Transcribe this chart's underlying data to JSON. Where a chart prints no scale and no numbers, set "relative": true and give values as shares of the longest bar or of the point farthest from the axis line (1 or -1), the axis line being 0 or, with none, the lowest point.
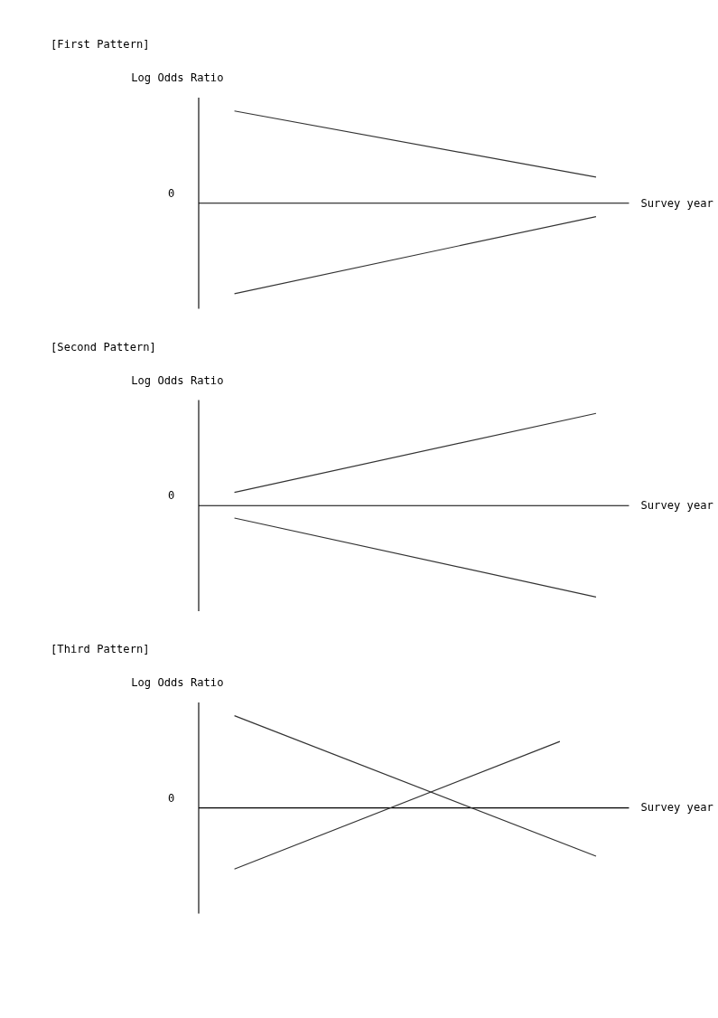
{
  "chart_data": [
    {
      "type": "line",
      "title": "[First Pattern]",
      "ylabel": "Log Odds Ratio",
      "xlabel": "Survey year",
      "relative": true,
      "grid": false,
      "marker": "none",
      "line_style": "solid",
      "tick_labels": false,
      "categories": [
        null,
        null,
        null,
        null,
        null,
        null,
        null,
        null,
        null,
        null,
        null
      ],
      "annotations": [
        "0"
      ],
      "series": [
        {
          "color": "#333333",
          "values": [
            1,
            null,
            null,
            null,
            null,
            null,
            null,
            null,
            null,
            null,
            0.28
          ]
        },
        {
          "color": "#333333",
          "values": [
            -0.99,
            null,
            null,
            null,
            null,
            null,
            null,
            null,
            null,
            null,
            -0.15
          ]
        }
      ]
    },
    {
      "type": "line",
      "title": "[Second Pattern]",
      "ylabel": "Log Odds Ratio",
      "xlabel": "Survey year",
      "relative": true,
      "grid": false,
      "marker": "none",
      "line_style": "solid",
      "tick_labels": false,
      "categories": [
        null,
        null,
        null,
        null,
        null,
        null,
        null,
        null,
        null,
        null,
        null
      ],
      "annotations": [
        "0"
      ],
      "series": [
        {
          "color": "#333333",
          "values": [
            0.14,
            null,
            null,
            null,
            null,
            null,
            null,
            null,
            null,
            null,
            1
          ]
        },
        {
          "color": "#333333",
          "values": [
            -0.14,
            null,
            null,
            null,
            null,
            null,
            null,
            null,
            null,
            null,
            -1
          ]
        }
      ]
    },
    {
      "type": "line",
      "title": "[Third Pattern]",
      "ylabel": "Log Odds Ratio",
      "xlabel": "Survey year",
      "relative": true,
      "grid": false,
      "marker": "none",
      "line_style": "solid",
      "tick_labels": false,
      "categories": [
        null,
        null,
        null,
        null,
        null,
        null,
        null,
        null,
        null,
        null,
        null
      ],
      "annotations": [
        "0"
      ],
      "series": [
        {
          "color": "#333333",
          "values": [
            1,
            null,
            null,
            null,
            null,
            null,
            null,
            null,
            null,
            null,
            -0.53
          ]
        },
        {
          "color": "#333333",
          "values": [
            -0.67,
            null,
            null,
            null,
            null,
            null,
            null,
            null,
            null,
            0.72,
            null
          ]
        }
      ]
    }
  ]
}
